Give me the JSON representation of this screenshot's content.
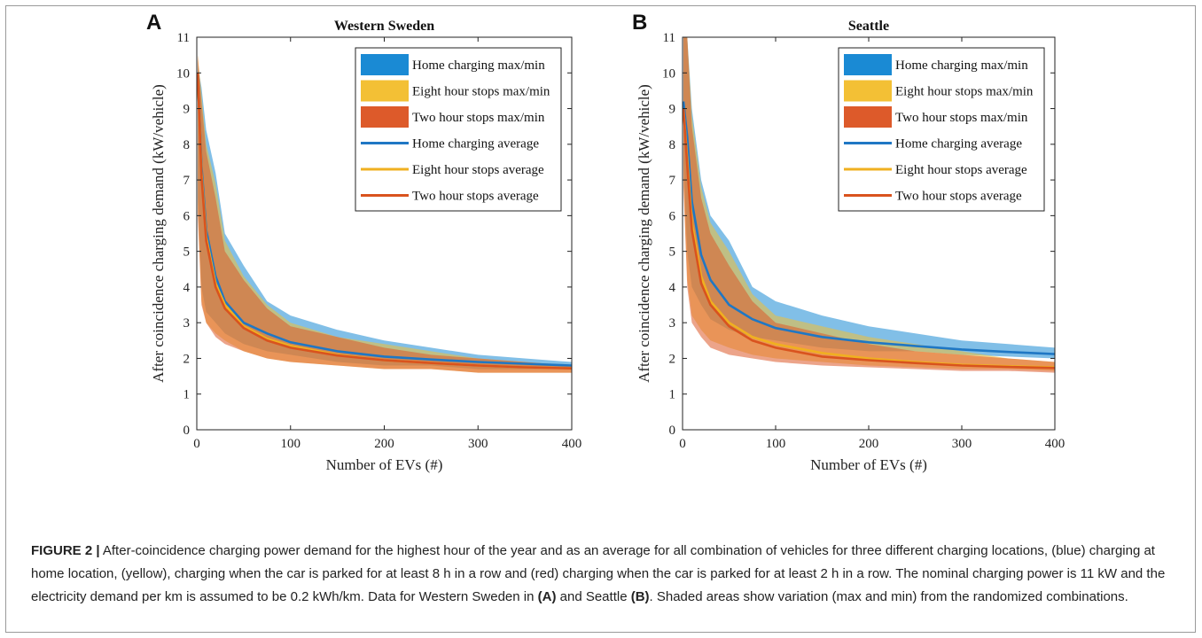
{
  "figure_label": "FIGURE 2 |",
  "caption": {
    "part1": " After-coincidence charging power demand for the highest hour of the year and as an average for all combination of vehicles for three different charging locations, (blue) charging at home location, (yellow), charging when the car is parked for at least 8 h in a row and (red) charging when the car is parked for at least 2 h in a row. The nominal charging power is 11 kW and the electricity demand per km is assumed to be 0.2 kWh/km. Data for Western Sweden in ",
    "ref_a": "(A)",
    "part2": " and Seattle ",
    "ref_b": "(B)",
    "part3": ". Shaded areas show variation (max and min) from the randomized combinations."
  },
  "colors": {
    "home": "#1f77c4",
    "eight": "#f0b020",
    "two": "#d9531e",
    "home_fill": "#1a8ad4",
    "eight_fill": "#f3c035",
    "two_fill": "#dd5a2a"
  },
  "chart_data": [
    {
      "panel": "A",
      "type": "area",
      "title": "Western Sweden",
      "xlabel": "Number of EVs (#)",
      "ylabel": "After coincidence charging demand (kW/vehicle)",
      "xlim": [
        0,
        400
      ],
      "ylim": [
        0,
        11
      ],
      "xticks": [
        0,
        100,
        200,
        300,
        400
      ],
      "yticks": [
        0,
        1,
        2,
        3,
        4,
        5,
        6,
        7,
        8,
        9,
        10,
        11
      ],
      "legend_position": "top-right",
      "x": [
        1,
        5,
        10,
        20,
        30,
        50,
        75,
        100,
        150,
        200,
        250,
        300,
        350,
        400
      ],
      "series": [
        {
          "name": "Home charging max/min",
          "kind": "band",
          "color_key": "home_fill",
          "max": [
            10.2,
            9.6,
            8.4,
            7.2,
            5.5,
            4.6,
            3.6,
            3.2,
            2.8,
            2.5,
            2.3,
            2.1,
            2.0,
            1.9
          ],
          "min": [
            6.5,
            4.0,
            3.3,
            3.0,
            2.7,
            2.4,
            2.2,
            2.1,
            1.9,
            1.8,
            1.8,
            1.7,
            1.7,
            1.7
          ]
        },
        {
          "name": "Eight hour stops max/min",
          "kind": "band",
          "color_key": "eight_fill",
          "max": [
            10.5,
            9.4,
            8.0,
            6.9,
            5.3,
            4.3,
            3.5,
            3.0,
            2.6,
            2.4,
            2.2,
            2.0,
            1.9,
            1.8
          ],
          "min": [
            6.2,
            3.6,
            3.0,
            2.7,
            2.5,
            2.2,
            2.0,
            1.9,
            1.8,
            1.7,
            1.7,
            1.6,
            1.6,
            1.6
          ]
        },
        {
          "name": "Two hour stops max/min",
          "kind": "band",
          "color_key": "two_fill",
          "max": [
            10.5,
            9.2,
            7.8,
            6.5,
            5.0,
            4.2,
            3.4,
            2.9,
            2.6,
            2.3,
            2.1,
            2.0,
            1.9,
            1.8
          ],
          "min": [
            6.0,
            3.5,
            3.0,
            2.6,
            2.4,
            2.2,
            2.0,
            1.9,
            1.8,
            1.7,
            1.7,
            1.6,
            1.6,
            1.6
          ]
        },
        {
          "name": "Home charging average",
          "kind": "line",
          "color_key": "home",
          "values": [
            10.0,
            7.4,
            5.6,
            4.3,
            3.6,
            3.0,
            2.7,
            2.45,
            2.2,
            2.05,
            1.97,
            1.9,
            1.85,
            1.8
          ]
        },
        {
          "name": "Eight hour stops average",
          "kind": "line",
          "color_key": "eight",
          "values": [
            10.0,
            7.2,
            5.4,
            4.1,
            3.5,
            2.9,
            2.55,
            2.35,
            2.1,
            1.95,
            1.87,
            1.8,
            1.75,
            1.72
          ]
        },
        {
          "name": "Two hour stops average",
          "kind": "line",
          "color_key": "two",
          "values": [
            10.0,
            7.1,
            5.3,
            4.0,
            3.4,
            2.85,
            2.5,
            2.3,
            2.08,
            1.95,
            1.87,
            1.8,
            1.75,
            1.72
          ]
        }
      ]
    },
    {
      "panel": "B",
      "type": "area",
      "title": "Seattle",
      "xlabel": "Number of EVs (#)",
      "ylabel": "After coincidence charging demand (kW/vehicle)",
      "xlim": [
        0,
        400
      ],
      "ylim": [
        0,
        11
      ],
      "xticks": [
        0,
        100,
        200,
        300,
        400
      ],
      "yticks": [
        0,
        1,
        2,
        3,
        4,
        5,
        6,
        7,
        8,
        9,
        10,
        11
      ],
      "legend_position": "top-right",
      "x": [
        1,
        5,
        10,
        20,
        30,
        50,
        75,
        100,
        150,
        200,
        250,
        300,
        350,
        400
      ],
      "series": [
        {
          "name": "Home charging max/min",
          "kind": "band",
          "color_key": "home_fill",
          "max": [
            11.0,
            11.0,
            9.0,
            7.0,
            6.0,
            5.3,
            4.0,
            3.6,
            3.2,
            2.9,
            2.7,
            2.5,
            2.4,
            2.3
          ],
          "min": [
            7.5,
            5.0,
            4.0,
            3.5,
            3.1,
            2.8,
            2.6,
            2.5,
            2.3,
            2.2,
            2.2,
            2.1,
            2.05,
            2.0
          ]
        },
        {
          "name": "Eight hour stops max/min",
          "kind": "band",
          "color_key": "eight_fill",
          "max": [
            11.0,
            11.0,
            8.8,
            6.8,
            5.8,
            5.0,
            3.8,
            3.2,
            2.9,
            2.6,
            2.4,
            2.2,
            2.0,
            1.9
          ],
          "min": [
            7.0,
            4.2,
            3.2,
            2.8,
            2.5,
            2.3,
            2.1,
            2.0,
            1.9,
            1.8,
            1.75,
            1.7,
            1.7,
            1.65
          ]
        },
        {
          "name": "Two hour stops max/min",
          "kind": "band",
          "color_key": "two_fill",
          "max": [
            11.0,
            11.0,
            8.5,
            6.5,
            5.5,
            4.6,
            3.6,
            3.0,
            2.7,
            2.4,
            2.2,
            2.1,
            2.0,
            1.9
          ],
          "min": [
            6.8,
            4.0,
            3.0,
            2.6,
            2.3,
            2.1,
            2.0,
            1.9,
            1.8,
            1.75,
            1.7,
            1.65,
            1.65,
            1.6
          ]
        },
        {
          "name": "Home charging average",
          "kind": "line",
          "color_key": "home",
          "values": [
            9.2,
            8.2,
            6.4,
            4.9,
            4.2,
            3.5,
            3.1,
            2.85,
            2.6,
            2.45,
            2.35,
            2.25,
            2.18,
            2.12
          ]
        },
        {
          "name": "Eight hour stops average",
          "kind": "line",
          "color_key": "eight",
          "values": [
            9.0,
            7.6,
            5.8,
            4.3,
            3.6,
            3.0,
            2.6,
            2.4,
            2.15,
            2.0,
            1.9,
            1.82,
            1.78,
            1.75
          ]
        },
        {
          "name": "Two hour stops average",
          "kind": "line",
          "color_key": "two",
          "values": [
            9.0,
            7.4,
            5.6,
            4.1,
            3.5,
            2.9,
            2.5,
            2.3,
            2.05,
            1.95,
            1.87,
            1.8,
            1.76,
            1.73
          ]
        }
      ]
    }
  ]
}
